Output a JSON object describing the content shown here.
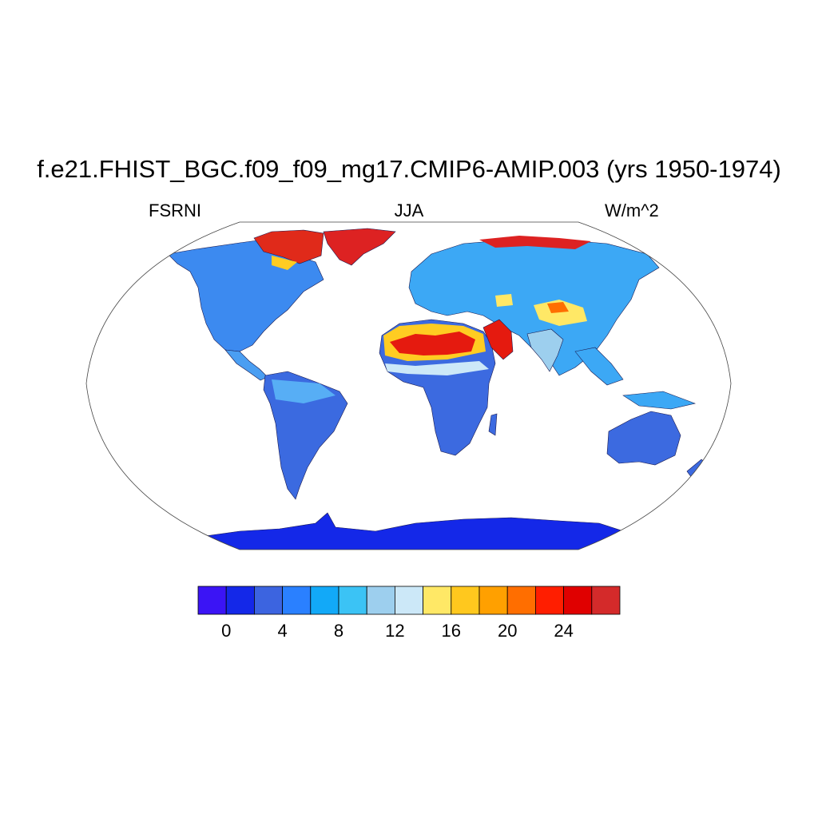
{
  "title": "f.e21.FHIST_BGC.f09_f09_mg17.CMIP6-AMIP.003 (yrs 1950-1974)",
  "variable": "FSRNI",
  "season": "JJA",
  "units": "W/m^2",
  "map": {
    "projection": "Robinson",
    "land_default_color": "#2a80ff",
    "ocean_color": "#ffffff",
    "regions": [
      {
        "name": "Antarctica",
        "level_color": "#1428e8"
      },
      {
        "name": "Greenland",
        "level_color": "#dd2222"
      },
      {
        "name": "Sahara",
        "level_color": "#e51a0f"
      },
      {
        "name": "Arabian Peninsula",
        "level_color": "#e51a0f"
      },
      {
        "name": "Tibetan Plateau",
        "level_color": "#ffcc22"
      },
      {
        "name": "Canadian Arctic",
        "level_color": "#dd2222"
      }
    ]
  },
  "colorbar": {
    "colors": [
      "#3b14f5",
      "#1428e8",
      "#3c64e0",
      "#2a80ff",
      "#12a9f8",
      "#3bc3f5",
      "#9dcfee",
      "#cce8f8",
      "#ffe866",
      "#ffc81e",
      "#ffa000",
      "#ff6e00",
      "#ff1e00",
      "#e00000",
      "#d42a2a"
    ],
    "tick_labels": [
      "0",
      "4",
      "8",
      "12",
      "16",
      "20",
      "24"
    ],
    "tick_values": [
      0,
      4,
      8,
      12,
      16,
      20,
      24
    ],
    "levels": [
      -2,
      0,
      2,
      4,
      6,
      8,
      10,
      12,
      14,
      16,
      18,
      20,
      22,
      24,
      26,
      28
    ]
  }
}
